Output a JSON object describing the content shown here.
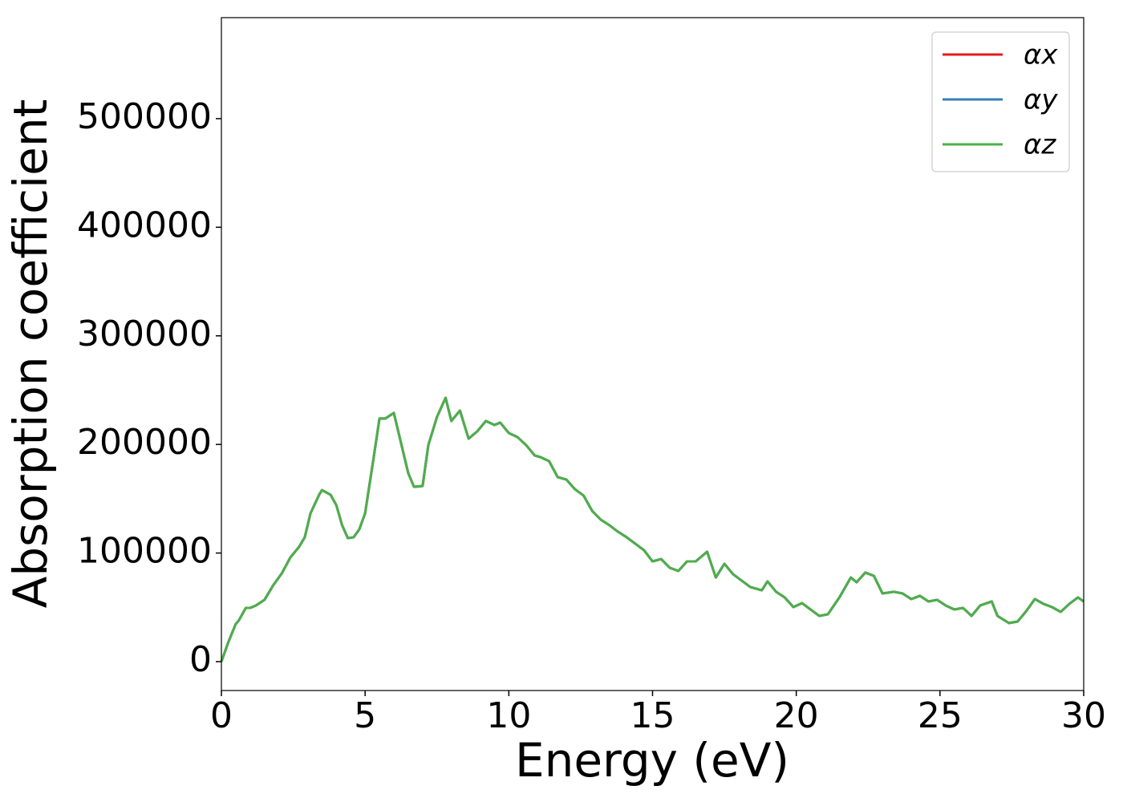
{
  "chart_data": {
    "type": "line",
    "xlabel": "Energy (eV)",
    "ylabel": "Absorption coefficient",
    "x": [
      0,
      0.25,
      0.5,
      0.6,
      0.85,
      1.0,
      1.2,
      1.5,
      1.8,
      2.1,
      2.4,
      2.7,
      2.9,
      3.1,
      3.4,
      3.5,
      3.8,
      4.0,
      4.2,
      4.4,
      4.6,
      4.8,
      5.0,
      5.3,
      5.5,
      5.7,
      6.0,
      6.2,
      6.5,
      6.7,
      7.0,
      7.2,
      7.5,
      7.8,
      8.0,
      8.3,
      8.6,
      8.9,
      9.2,
      9.5,
      9.7,
      10.0,
      10.3,
      10.6,
      10.9,
      11.1,
      11.4,
      11.7,
      12.0,
      12.3,
      12.6,
      12.9,
      13.2,
      13.5,
      13.8,
      14.1,
      14.4,
      14.7,
      15.0,
      15.3,
      15.6,
      15.9,
      16.2,
      16.5,
      16.9,
      17.2,
      17.5,
      17.8,
      18.1,
      18.4,
      18.8,
      19.0,
      19.3,
      19.6,
      19.9,
      20.2,
      20.5,
      20.8,
      21.1,
      21.5,
      21.9,
      22.1,
      22.4,
      22.7,
      23.0,
      23.4,
      23.7,
      24.0,
      24.3,
      24.6,
      24.9,
      25.2,
      25.5,
      25.8,
      26.1,
      26.4,
      26.8,
      27.0,
      27.4,
      27.7,
      28.0,
      28.3,
      28.6,
      28.9,
      29.2,
      29.5,
      29.8,
      30.0
    ],
    "series": [
      {
        "name": "αx",
        "color": "#e41a1c",
        "values": [
          0,
          18500,
          34700,
          37700,
          49500,
          49500,
          51700,
          56900,
          70200,
          81200,
          96000,
          105600,
          114500,
          136600,
          153600,
          158000,
          153600,
          144000,
          125600,
          113700,
          114500,
          121900,
          136600,
          188300,
          223800,
          223800,
          229000,
          206800,
          173600,
          161000,
          161700,
          199400,
          225300,
          243000,
          221600,
          231200,
          205300,
          212000,
          221600,
          217900,
          220100,
          210500,
          206800,
          199400,
          189800,
          188300,
          184600,
          169900,
          167700,
          158800,
          152900,
          138800,
          130700,
          125600,
          119600,
          114500,
          108600,
          102700,
          92300,
          94500,
          86400,
          83500,
          92300,
          92300,
          101200,
          77500,
          90100,
          80500,
          74600,
          68700,
          65700,
          73900,
          64300,
          59100,
          50200,
          53900,
          48000,
          42100,
          43600,
          59100,
          77500,
          73100,
          82000,
          79000,
          62800,
          64300,
          62800,
          57600,
          60600,
          55400,
          56900,
          51700,
          48000,
          49500,
          42100,
          51700,
          55400,
          42100,
          35500,
          36900,
          46500,
          57600,
          53200,
          50200,
          45800,
          53200,
          59100,
          55400
        ]
      },
      {
        "name": "αy",
        "color": "#377eb8",
        "values": [
          0,
          18500,
          34700,
          37700,
          49500,
          49500,
          51700,
          56900,
          70200,
          81200,
          96000,
          105600,
          114500,
          136600,
          153600,
          158000,
          153600,
          144000,
          125600,
          113700,
          114500,
          121900,
          136600,
          188300,
          223800,
          223800,
          229000,
          206800,
          173600,
          161000,
          161700,
          199400,
          225300,
          243000,
          221600,
          231200,
          205300,
          212000,
          221600,
          217900,
          220100,
          210500,
          206800,
          199400,
          189800,
          188300,
          184600,
          169900,
          167700,
          158800,
          152900,
          138800,
          130700,
          125600,
          119600,
          114500,
          108600,
          102700,
          92300,
          94500,
          86400,
          83500,
          92300,
          92300,
          101200,
          77500,
          90100,
          80500,
          74600,
          68700,
          65700,
          73900,
          64300,
          59100,
          50200,
          53900,
          48000,
          42100,
          43600,
          59100,
          77500,
          73100,
          82000,
          79000,
          62800,
          64300,
          62800,
          57600,
          60600,
          55400,
          56900,
          51700,
          48000,
          49500,
          42100,
          51700,
          55400,
          42100,
          35500,
          36900,
          46500,
          57600,
          53200,
          50200,
          45800,
          53200,
          59100,
          55400
        ]
      },
      {
        "name": "αz",
        "color": "#4daf4a",
        "values": [
          0,
          18500,
          34700,
          37700,
          49500,
          49500,
          51700,
          56900,
          70200,
          81200,
          96000,
          105600,
          114500,
          136600,
          153600,
          158000,
          153600,
          144000,
          125600,
          113700,
          114500,
          121900,
          136600,
          188300,
          223800,
          223800,
          229000,
          206800,
          173600,
          161000,
          161700,
          199400,
          225300,
          243000,
          221600,
          231200,
          205300,
          212000,
          221600,
          217900,
          220100,
          210500,
          206800,
          199400,
          189800,
          188300,
          184600,
          169900,
          167700,
          158800,
          152900,
          138800,
          130700,
          125600,
          119600,
          114500,
          108600,
          102700,
          92300,
          94500,
          86400,
          83500,
          92300,
          92300,
          101200,
          77500,
          90100,
          80500,
          74600,
          68700,
          65700,
          73900,
          64300,
          59100,
          50200,
          53900,
          48000,
          42100,
          43600,
          59100,
          77500,
          73100,
          82000,
          79000,
          62800,
          64300,
          62800,
          57600,
          60600,
          55400,
          56900,
          51700,
          48000,
          49500,
          42100,
          51700,
          55400,
          42100,
          35500,
          36900,
          46500,
          57600,
          53200,
          50200,
          45800,
          53200,
          59100,
          55400
        ]
      }
    ],
    "xlim": [
      0,
      30
    ],
    "xticks": [
      0,
      5,
      10,
      15,
      20,
      25,
      30
    ],
    "ylim": [
      -26600,
      593000
    ],
    "yticks": [
      0,
      100000,
      200000,
      300000,
      400000,
      500000
    ],
    "legend": "upper right",
    "grid": false
  }
}
